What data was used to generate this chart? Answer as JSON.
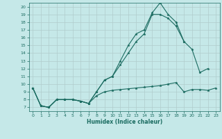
{
  "title": "",
  "xlabel": "Humidex (Indice chaleur)",
  "bg_color": "#c5e8e8",
  "grid_color": "#b0cccc",
  "line_color": "#1a6b60",
  "xlim": [
    -0.5,
    23.5
  ],
  "ylim": [
    6.5,
    20.5
  ],
  "yticks": [
    7,
    8,
    9,
    10,
    11,
    12,
    13,
    14,
    15,
    16,
    17,
    18,
    19,
    20
  ],
  "xticks": [
    0,
    1,
    2,
    3,
    4,
    5,
    6,
    7,
    8,
    9,
    10,
    11,
    12,
    13,
    14,
    15,
    16,
    17,
    18,
    19,
    20,
    21,
    22,
    23
  ],
  "line1_x": [
    0,
    1,
    2,
    3,
    4,
    5,
    6,
    7,
    8,
    9,
    10,
    11,
    12,
    13,
    14,
    15,
    16,
    17,
    18,
    19,
    20,
    21,
    22
  ],
  "line1_y": [
    9.5,
    7.2,
    7.0,
    8.0,
    8.0,
    8.0,
    7.8,
    7.5,
    9.0,
    10.5,
    11.0,
    13.0,
    15.0,
    16.5,
    17.0,
    19.2,
    20.5,
    19.0,
    18.0,
    15.5,
    14.5,
    11.5,
    12.0
  ],
  "line2_x": [
    0,
    1,
    2,
    3,
    4,
    5,
    6,
    7,
    8,
    9,
    10,
    11,
    12,
    13,
    14,
    15,
    16,
    17,
    18,
    19
  ],
  "line2_y": [
    9.5,
    7.2,
    7.0,
    8.0,
    8.0,
    8.0,
    7.8,
    7.5,
    9.0,
    10.5,
    11.0,
    12.5,
    14.0,
    15.5,
    16.5,
    19.0,
    19.0,
    18.5,
    17.5,
    15.5
  ],
  "line3_x": [
    0,
    1,
    2,
    3,
    4,
    5,
    6,
    7,
    8,
    9,
    10,
    11,
    12,
    13,
    14,
    15,
    16,
    17,
    18,
    19,
    20,
    21,
    22,
    23
  ],
  "line3_y": [
    9.5,
    7.2,
    7.0,
    8.0,
    8.0,
    8.0,
    7.8,
    7.5,
    8.5,
    9.0,
    9.2,
    9.3,
    9.4,
    9.5,
    9.6,
    9.7,
    9.8,
    10.0,
    10.2,
    9.0,
    9.3,
    9.3,
    9.2,
    9.5
  ]
}
